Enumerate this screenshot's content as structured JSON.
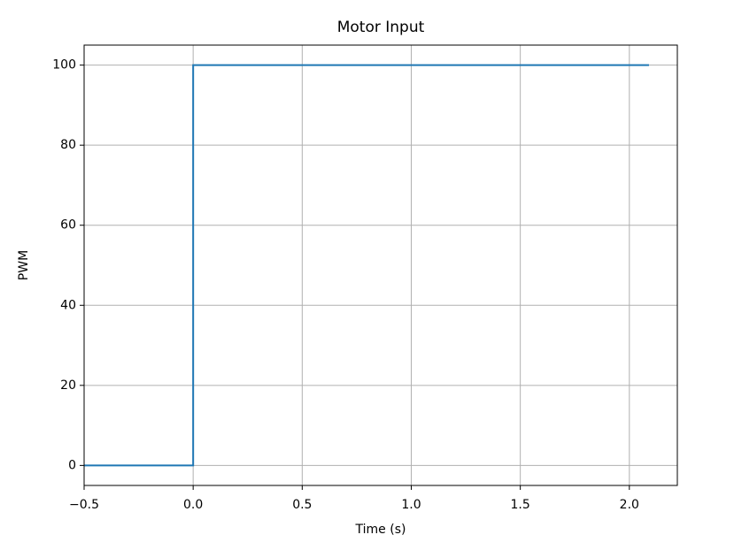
{
  "chart_data": {
    "type": "line",
    "title": "Motor Input",
    "x_label": "Time (s)",
    "y_label": "PWM",
    "x": [
      -0.5,
      0,
      0,
      2.09
    ],
    "series": [
      {
        "name": "PWM",
        "color": "#1f77b4",
        "values": [
          0,
          0,
          100,
          100
        ]
      }
    ],
    "xlim": [
      -0.5,
      2.22
    ],
    "ylim": [
      -5,
      105
    ],
    "xticks": [
      {
        "value": -0.5,
        "label": "−0.5"
      },
      {
        "value": 0,
        "label": "0.0"
      },
      0.5,
      {
        "value": 1,
        "label": "1.0"
      },
      1.5,
      {
        "value": 2,
        "label": "2.0"
      }
    ],
    "yticks": [
      0,
      20,
      40,
      60,
      80,
      100
    ],
    "grid": true
  }
}
